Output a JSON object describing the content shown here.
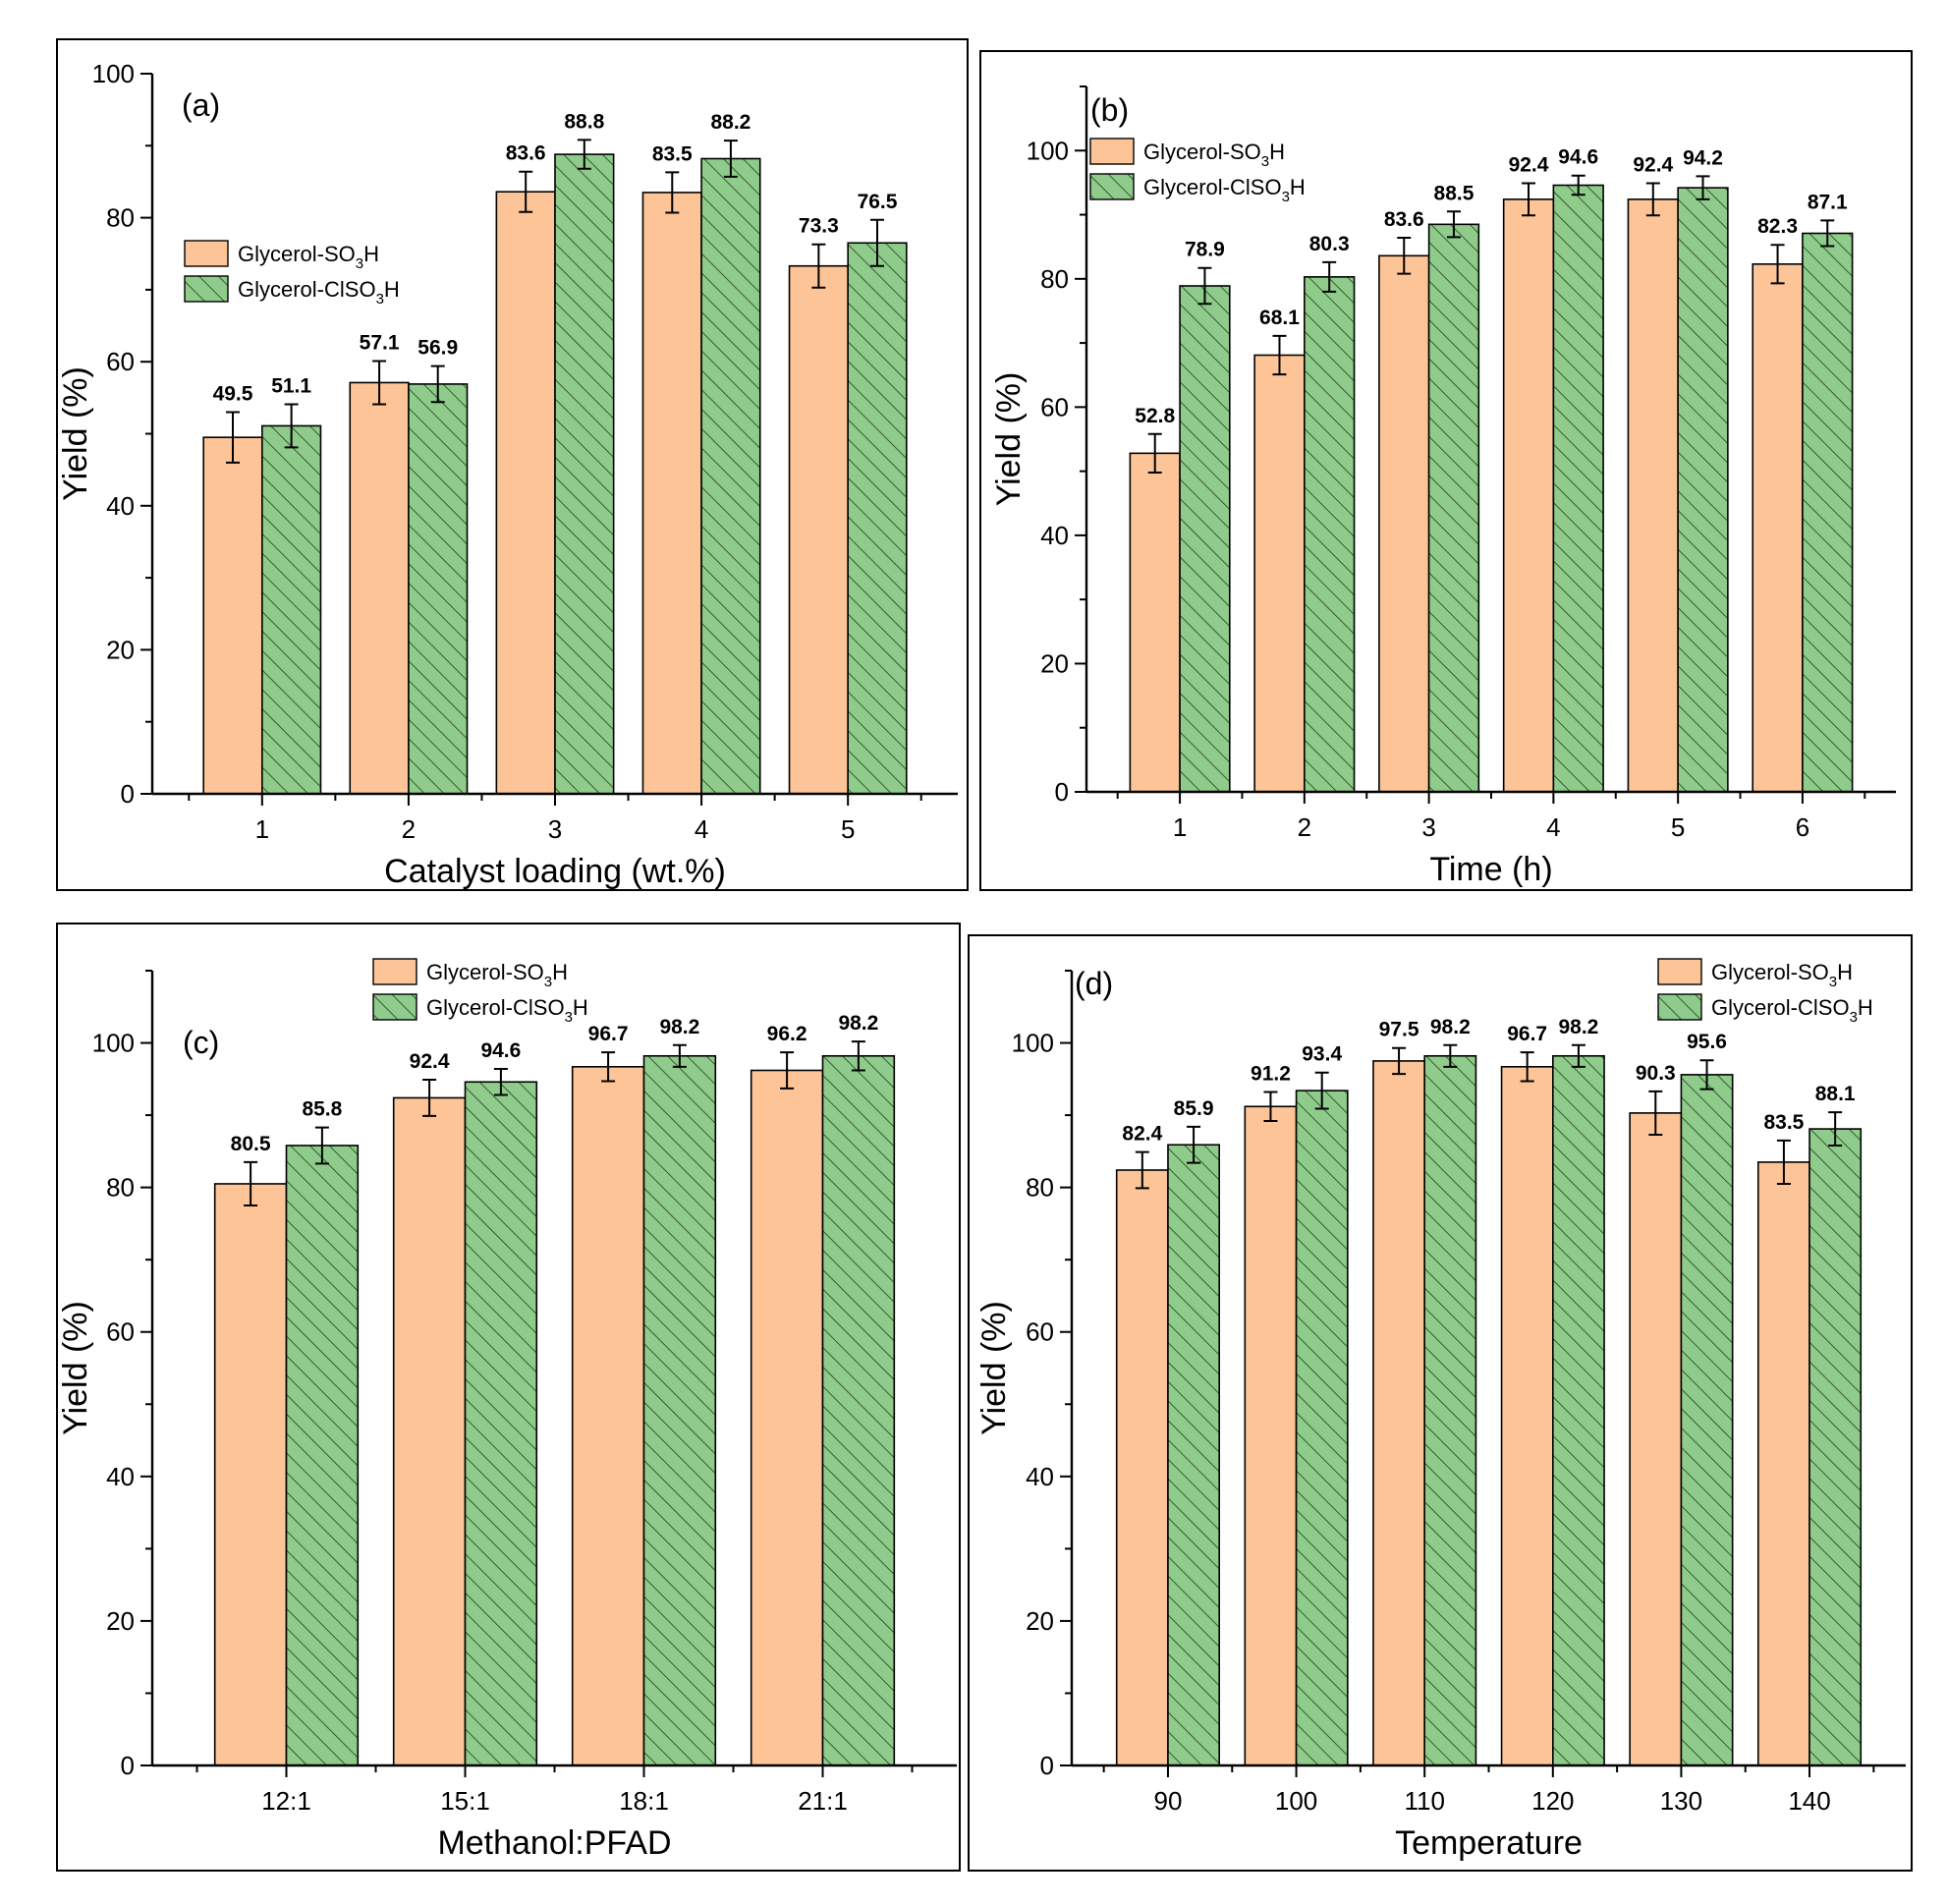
{
  "colors": {
    "series1_fill": "#FDC597",
    "series2_fill": "#8FCB8B",
    "hatch": "#2d4f2a"
  },
  "chart_data": [
    {
      "type": "bar",
      "panel": "(a)",
      "categories": [
        "1",
        "2",
        "3",
        "4",
        "5"
      ],
      "series": [
        {
          "name": "Glycerol-SO3H",
          "values": [
            49.5,
            57.1,
            83.6,
            83.5,
            73.3
          ],
          "errors": [
            3.5,
            3.0,
            2.8,
            2.8,
            3.0
          ]
        },
        {
          "name": "Glycerol-ClSO3H",
          "values": [
            51.1,
            56.9,
            88.8,
            88.2,
            76.5
          ],
          "errors": [
            3.0,
            2.5,
            2.0,
            2.5,
            3.2
          ]
        }
      ],
      "legend": [
        {
          "prefix": "Glycerol-SO",
          "sub": "3",
          "suffix": "H"
        },
        {
          "prefix": "Glycerol-ClSO",
          "sub": "3",
          "suffix": "H"
        }
      ],
      "xlabel": "Catalyst loading (wt.%)",
      "ylabel": "Yield (%)",
      "ylim": [
        0,
        100
      ],
      "yticks": [
        "0",
        "20",
        "40",
        "60",
        "80",
        "100"
      ]
    },
    {
      "type": "bar",
      "panel": "(b)",
      "categories": [
        "1",
        "2",
        "3",
        "4",
        "5",
        "6"
      ],
      "series": [
        {
          "name": "Glycerol-SO3H",
          "values": [
            52.8,
            68.1,
            83.6,
            92.4,
            92.4,
            82.3
          ],
          "errors": [
            3.0,
            3.0,
            2.8,
            2.5,
            2.5,
            3.0
          ]
        },
        {
          "name": "Glycerol-ClSO3H",
          "values": [
            78.9,
            80.3,
            88.5,
            94.6,
            94.2,
            87.1
          ],
          "errors": [
            2.8,
            2.3,
            2.0,
            1.5,
            1.8,
            2.0
          ]
        }
      ],
      "legend": [
        {
          "prefix": "Glycerol-SO",
          "sub": "3",
          "suffix": "H"
        },
        {
          "prefix": "Glycerol-ClSO",
          "sub": "3",
          "suffix": "H"
        }
      ],
      "xlabel": "Time (h)",
      "ylabel": "Yield (%)",
      "ylim": [
        0,
        110
      ],
      "yticks": [
        "0",
        "20",
        "40",
        "60",
        "80",
        "100"
      ]
    },
    {
      "type": "bar",
      "panel": "(c)",
      "categories": [
        "12:1",
        "15:1",
        "18:1",
        "21:1"
      ],
      "series": [
        {
          "name": "Glycerol-SO3H",
          "values": [
            80.5,
            92.4,
            96.7,
            96.2
          ],
          "errors": [
            3.0,
            2.5,
            2.0,
            2.5
          ]
        },
        {
          "name": "Glycerol-ClSO3H",
          "values": [
            85.8,
            94.6,
            98.2,
            98.2
          ],
          "errors": [
            2.5,
            1.8,
            1.5,
            2.0
          ]
        }
      ],
      "legend": [
        {
          "prefix": "Glycerol-SO",
          "sub": "3",
          "suffix": "H"
        },
        {
          "prefix": "Glycerol-ClSO",
          "sub": "3",
          "suffix": "H"
        }
      ],
      "xlabel": "Methanol:PFAD",
      "ylabel": "Yield (%)",
      "ylim": [
        0,
        110
      ],
      "yticks": [
        "0",
        "20",
        "40",
        "60",
        "80",
        "100"
      ]
    },
    {
      "type": "bar",
      "panel": "(d)",
      "categories": [
        "90",
        "100",
        "110",
        "120",
        "130",
        "140"
      ],
      "series": [
        {
          "name": "Glycerol-SO3H",
          "values": [
            82.4,
            91.2,
            97.5,
            96.7,
            90.3,
            83.5
          ],
          "errors": [
            2.5,
            2.0,
            1.8,
            2.0,
            3.0,
            3.0
          ]
        },
        {
          "name": "Glycerol-ClSO3H",
          "values": [
            85.9,
            93.4,
            98.2,
            98.2,
            95.6,
            88.1
          ],
          "errors": [
            2.5,
            2.5,
            1.5,
            1.5,
            2.0,
            2.3
          ]
        }
      ],
      "legend": [
        {
          "prefix": "Glycerol-SO",
          "sub": "3",
          "suffix": "H"
        },
        {
          "prefix": "Glycerol-ClSO",
          "sub": "3",
          "suffix": "H"
        }
      ],
      "xlabel": "Temperature",
      "ylabel": "Yield (%)",
      "ylim": [
        0,
        110
      ],
      "yticks": [
        "0",
        "20",
        "40",
        "60",
        "80",
        "100"
      ]
    }
  ]
}
